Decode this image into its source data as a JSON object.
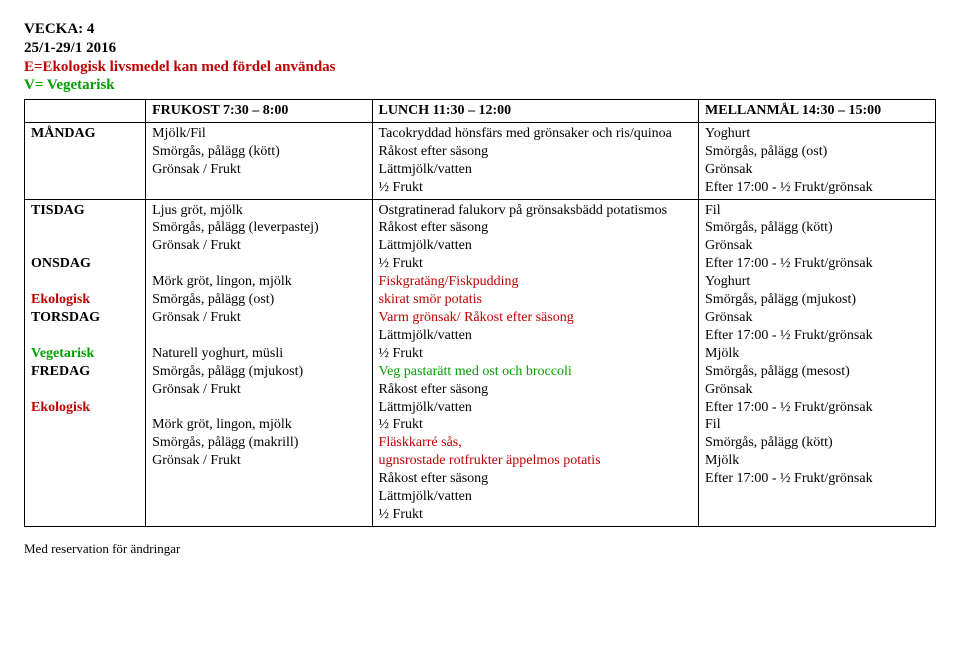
{
  "header": {
    "week_label": "VECKA: 4",
    "date_range": "25/1-29/1 2016",
    "eco_note": "E=Ekologisk livsmedel kan med fördel användas",
    "veg_note": "V= Vegetarisk"
  },
  "cols": {
    "day": "",
    "breakfast": "FRUKOST  7:30 – 8:00",
    "lunch": "LUNCH  11:30 – 12:00",
    "snack": "MELLANMÅL  14:30 – 15:00"
  },
  "rows": {
    "mon": {
      "day1": "MÅNDAG",
      "b1": "Mjölk/Fil",
      "b2": "Smörgås, pålägg (kött)",
      "b3": "Grönsak / Frukt",
      "l1": "Tacokryddad hönsfärs med grönsaker och ris/quinoa",
      "l2": "Råkost efter säsong",
      "l3": "Lättmjölk/vatten",
      "l4": "½ Frukt",
      "s1": "Yoghurt",
      "s2": "Smörgås, pålägg (ost)",
      "s3": "Grönsak",
      "s4": "Efter 17:00 - ½ Frukt/grönsak"
    },
    "tue": {
      "day1": "TISDAG",
      "b1": "Ljus gröt, mjölk",
      "b2": "Smörgås, pålägg (leverpastej)",
      "b3": "Grönsak / Frukt",
      "l1": "Ostgratinerad falukorv på grönsaksbädd potatismos",
      "l2": "Råkost efter säsong",
      "l3": "Lättmjölk/vatten",
      "l4": "½ Frukt",
      "s1": "Fil",
      "s2": "Smörgås, pålägg (kött)",
      "s3": "Grönsak",
      "s4": "Efter 17:00 - ½ Frukt/grönsak"
    },
    "wed": {
      "day1": "ONSDAG",
      "day2": "Ekologisk",
      "b1": "Mörk gröt, lingon, mjölk",
      "b2": "Smörgås, pålägg (ost)",
      "b3": "Grönsak / Frukt",
      "l1": "Fiskgratäng/Fiskpudding",
      "l2": "skirat smör potatis",
      "l3": "Varm grönsak/ Råkost efter säsong",
      "l4": "Lättmjölk/vatten",
      "l5": "½ Frukt",
      "s1": "Yoghurt",
      "s2": "Smörgås, pålägg (mjukost)",
      "s3": "Grönsak",
      "s4": "Efter 17:00 - ½ Frukt/grönsak"
    },
    "thu": {
      "day1": "TORSDAG",
      "day2": "Vegetarisk",
      "b1": "Naturell yoghurt, müsli",
      "b2": "Smörgås, pålägg (mjukost)",
      "b3": "Grönsak / Frukt",
      "l1": "Veg pastarätt med ost och broccoli",
      "l2": "Råkost efter säsong",
      "l3": "Lättmjölk/vatten",
      "l4": "½ Frukt",
      "s1": "Mjölk",
      "s2": "Smörgås, pålägg (mesost)",
      "s3": "Grönsak",
      "s4": "Efter 17:00 - ½ Frukt/grönsak"
    },
    "fri": {
      "day1": "FREDAG",
      "day2": "Ekologisk",
      "b1": "Mörk gröt, lingon, mjölk",
      "b2": "Smörgås, pålägg (makrill)",
      "b3": "Grönsak / Frukt",
      "l1": "Fläskkarré sås,",
      "l2": "ugnsrostade rotfrukter äppelmos potatis",
      "l3": "Råkost efter säsong",
      "l4": "Lättmjölk/vatten",
      "l5": "½ Frukt",
      "s1": "Fil",
      "s2": "Smörgås, pålägg (kött)",
      "s3": "Mjölk",
      "s4": "Efter 17:00 - ½ Frukt/grönsak"
    }
  },
  "footer": "Med reservation för ändringar"
}
